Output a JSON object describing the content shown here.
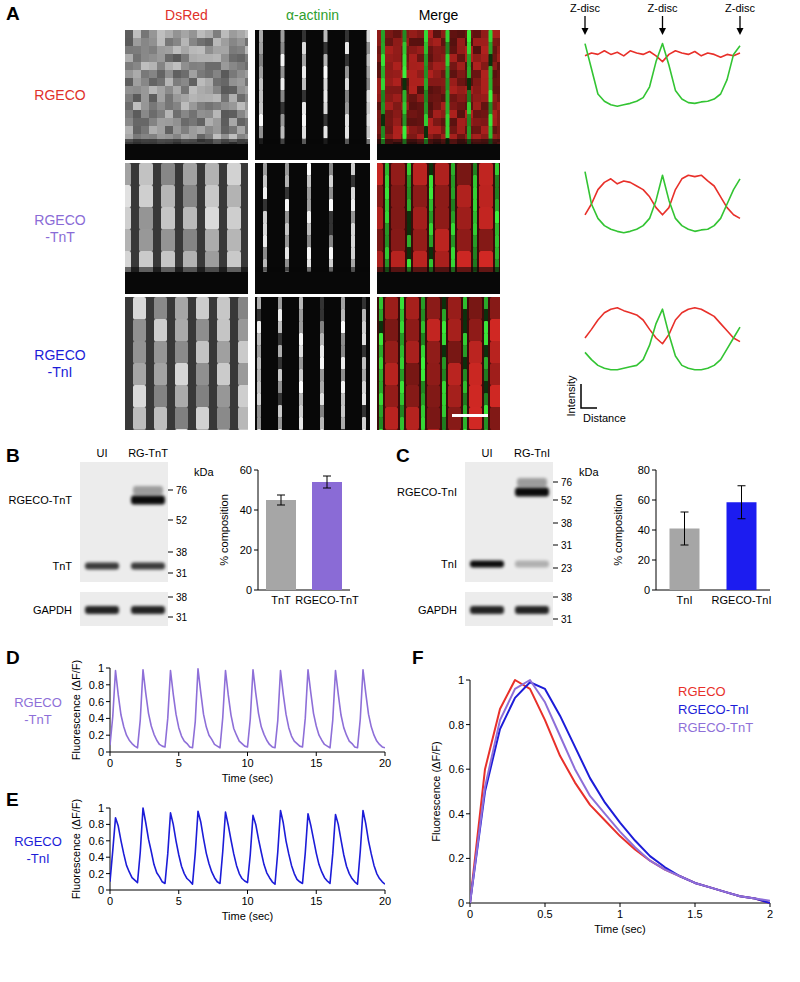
{
  "panel_labels": [
    "A",
    "B",
    "C",
    "D",
    "E",
    "F"
  ],
  "panel_a": {
    "columns": [
      {
        "text": "DsRed",
        "color": "#e0302a"
      },
      {
        "text": "α-actinin",
        "color": "#2ea02e"
      },
      {
        "text": "Merge",
        "color": "#000000"
      }
    ],
    "rows": [
      {
        "lines": [
          "RGECO"
        ],
        "color": "#e0302a"
      },
      {
        "lines": [
          "RGECO",
          "-TnT"
        ],
        "color": "#8a6bd6"
      },
      {
        "lines": [
          "RGECO",
          "-TnI"
        ],
        "color": "#1c1cd8"
      }
    ]
  },
  "blots": [
    {
      "lanes": [
        "UI",
        "RG-TnT"
      ],
      "unit": "kDa",
      "bands": [
        "RGECO-TnT",
        "TnT"
      ],
      "markers": [
        76,
        52,
        38,
        31
      ],
      "loading_label": "GAPDH",
      "loading_markers": [
        38,
        31
      ]
    },
    {
      "lanes": [
        "UI",
        "RG-TnI"
      ],
      "unit": "kDa",
      "bands": [
        "RGECO-TnI",
        "TnI"
      ],
      "markers": [
        76,
        52,
        38,
        31,
        23
      ],
      "loading_label": "GAPDH",
      "loading_markers": [
        38,
        31
      ]
    }
  ],
  "chart_data": [
    {
      "type": "line",
      "x": [
        0,
        1,
        2,
        3,
        4,
        5,
        6,
        7,
        8,
        9,
        10,
        11,
        12,
        13,
        14,
        15,
        16,
        17,
        18,
        19,
        20,
        21,
        22,
        23,
        24
      ],
      "xlim": [
        0,
        24
      ],
      "ylim": [
        0,
        1
      ],
      "tick_labels": false,
      "annotations": [
        "Z-disc",
        "Z-disc",
        "Z-disc"
      ],
      "series": [
        {
          "color": "#e8302a",
          "values": [
            0.78,
            0.82,
            0.8,
            0.85,
            0.8,
            0.83,
            0.78,
            0.85,
            0.82,
            0.8,
            0.84,
            0.78,
            0.7,
            0.8,
            0.85,
            0.82,
            0.8,
            0.84,
            0.78,
            0.82,
            0.8,
            0.76,
            0.8,
            0.78,
            0.82
          ]
        },
        {
          "color": "#33c433",
          "values": [
            0.95,
            0.6,
            0.25,
            0.15,
            0.1,
            0.08,
            0.1,
            0.12,
            0.15,
            0.2,
            0.35,
            0.7,
            0.95,
            0.65,
            0.3,
            0.18,
            0.13,
            0.12,
            0.14,
            0.15,
            0.18,
            0.25,
            0.45,
            0.8,
            0.92
          ]
        }
      ]
    },
    {
      "type": "line",
      "x": [
        0,
        1,
        2,
        3,
        4,
        5,
        6,
        7,
        8,
        9,
        10,
        11,
        12,
        13,
        14,
        15,
        16,
        17,
        18,
        19,
        20,
        21,
        22,
        23,
        24
      ],
      "xlim": [
        0,
        24
      ],
      "ylim": [
        0,
        1
      ],
      "tick_labels": false,
      "series": [
        {
          "color": "#e8302a",
          "values": [
            0.35,
            0.5,
            0.7,
            0.8,
            0.85,
            0.78,
            0.82,
            0.8,
            0.75,
            0.7,
            0.6,
            0.45,
            0.35,
            0.45,
            0.7,
            0.85,
            0.9,
            0.88,
            0.9,
            0.82,
            0.75,
            0.6,
            0.45,
            0.35,
            0.3
          ]
        },
        {
          "color": "#33c433",
          "values": [
            0.95,
            0.5,
            0.3,
            0.2,
            0.15,
            0.12,
            0.1,
            0.12,
            0.15,
            0.2,
            0.3,
            0.55,
            0.9,
            0.55,
            0.3,
            0.2,
            0.15,
            0.12,
            0.14,
            0.15,
            0.2,
            0.3,
            0.5,
            0.7,
            0.85
          ]
        }
      ]
    },
    {
      "type": "line",
      "x": [
        0,
        1,
        2,
        3,
        4,
        5,
        6,
        7,
        8,
        9,
        10,
        11,
        12,
        13,
        14,
        15,
        16,
        17,
        18,
        19,
        20,
        21,
        22,
        23,
        24
      ],
      "xlim": [
        0,
        24
      ],
      "ylim": [
        0,
        1
      ],
      "tick_labels": false,
      "x_label": "Distance",
      "y_label": "Intensity",
      "series": [
        {
          "color": "#e8302a",
          "values": [
            0.5,
            0.62,
            0.75,
            0.85,
            0.9,
            0.92,
            0.88,
            0.85,
            0.82,
            0.75,
            0.62,
            0.5,
            0.42,
            0.55,
            0.75,
            0.85,
            0.9,
            0.92,
            0.9,
            0.85,
            0.8,
            0.7,
            0.6,
            0.5,
            0.45
          ]
        },
        {
          "color": "#33c433",
          "values": [
            0.3,
            0.2,
            0.12,
            0.08,
            0.06,
            0.06,
            0.08,
            0.1,
            0.12,
            0.2,
            0.4,
            0.7,
            0.9,
            0.55,
            0.25,
            0.12,
            0.08,
            0.06,
            0.06,
            0.08,
            0.12,
            0.2,
            0.35,
            0.5,
            0.65
          ]
        }
      ]
    },
    {
      "type": "bar",
      "categories": [
        "TnT",
        "RGECO-TnT"
      ],
      "values": [
        45,
        54
      ],
      "errors": [
        2.5,
        3
      ],
      "colors": [
        "#a6a6a6",
        "#8a6bd6"
      ],
      "ylim": [
        0,
        60
      ],
      "yticks": [
        0,
        20,
        40,
        60
      ],
      "y_label": "% composition"
    },
    {
      "type": "bar",
      "categories": [
        "TnI",
        "RGECO-TnI"
      ],
      "values": [
        41,
        58.5
      ],
      "errors": [
        11,
        11
      ],
      "colors": [
        "#a6a6a6",
        "#1c1cf0"
      ],
      "ylim": [
        0,
        80
      ],
      "yticks": [
        0,
        20,
        40,
        60,
        80
      ],
      "y_label": "% composition"
    },
    {
      "type": "line",
      "x": [
        0,
        0.2,
        0.4,
        0.6,
        0.8,
        1,
        1.2,
        1.4,
        1.6,
        1.8,
        2,
        2.2,
        2.4,
        2.6,
        2.8,
        3,
        3.2,
        3.4,
        3.6,
        3.8,
        4,
        4.2,
        4.4,
        4.6,
        4.8,
        5,
        5.2,
        5.4,
        5.6,
        5.8,
        6,
        6.2,
        6.4,
        6.6,
        6.8,
        7,
        7.2,
        7.4,
        7.6,
        7.8,
        8,
        8.2,
        8.4,
        8.6,
        8.8,
        9,
        9.2,
        9.4,
        9.6,
        9.8,
        10,
        10.2,
        10.4,
        10.6,
        10.8,
        11,
        11.2,
        11.4,
        11.6,
        11.8,
        12,
        12.2,
        12.4,
        12.6,
        12.8,
        13,
        13.2,
        13.4,
        13.6,
        13.8,
        14,
        14.2,
        14.4,
        14.6,
        14.8,
        15,
        15.2,
        15.4,
        15.6,
        15.8,
        16,
        16.2,
        16.4,
        16.6,
        16.8,
        17,
        17.2,
        17.4,
        17.6,
        17.8,
        18,
        18.2,
        18.4,
        18.6,
        18.8,
        19,
        19.2,
        19.4,
        19.6,
        19.8,
        20
      ],
      "values": [
        0.08,
        0.42,
        0.97,
        0.68,
        0.44,
        0.3,
        0.2,
        0.14,
        0.1,
        0.07,
        0.05,
        0.38,
        0.98,
        0.7,
        0.46,
        0.31,
        0.21,
        0.14,
        0.09,
        0.07,
        0.06,
        0.4,
        0.97,
        0.69,
        0.45,
        0.29,
        0.19,
        0.13,
        0.1,
        0.06,
        0.05,
        0.36,
        0.99,
        0.71,
        0.45,
        0.3,
        0.2,
        0.15,
        0.09,
        0.07,
        0.05,
        0.41,
        0.97,
        0.68,
        0.44,
        0.28,
        0.2,
        0.13,
        0.1,
        0.07,
        0.06,
        0.39,
        0.98,
        0.7,
        0.46,
        0.3,
        0.21,
        0.14,
        0.09,
        0.06,
        0.05,
        0.37,
        0.97,
        0.69,
        0.45,
        0.29,
        0.19,
        0.13,
        0.1,
        0.07,
        0.06,
        0.4,
        0.98,
        0.71,
        0.46,
        0.31,
        0.2,
        0.14,
        0.09,
        0.07,
        0.05,
        0.38,
        0.97,
        0.69,
        0.44,
        0.29,
        0.2,
        0.13,
        0.1,
        0.06,
        0.05,
        0.39,
        0.98,
        0.7,
        0.45,
        0.3,
        0.2,
        0.13,
        0.09,
        0.06,
        0.05
      ],
      "color": "#8e6fd8",
      "xlim": [
        0,
        20
      ],
      "xticks": [
        0,
        5,
        10,
        15,
        20
      ],
      "ylim": [
        0,
        1
      ],
      "yticks": [
        0,
        0.2,
        0.4,
        0.6,
        0.8,
        1
      ],
      "x_label": "Time (sec)",
      "y_label": "Fluorescence (ΔF/F)",
      "annotations": [
        "RGECO",
        "-TnT"
      ]
    },
    {
      "type": "line",
      "x": [
        0,
        0.2,
        0.4,
        0.6,
        0.8,
        1,
        1.2,
        1.4,
        1.6,
        1.8,
        2,
        2.2,
        2.4,
        2.6,
        2.8,
        3,
        3.2,
        3.4,
        3.6,
        3.8,
        4,
        4.2,
        4.4,
        4.6,
        4.8,
        5,
        5.2,
        5.4,
        5.6,
        5.8,
        6,
        6.2,
        6.4,
        6.6,
        6.8,
        7,
        7.2,
        7.4,
        7.6,
        7.8,
        8,
        8.2,
        8.4,
        8.6,
        8.8,
        9,
        9.2,
        9.4,
        9.6,
        9.8,
        10,
        10.2,
        10.4,
        10.6,
        10.8,
        11,
        11.2,
        11.4,
        11.6,
        11.8,
        12,
        12.2,
        12.4,
        12.6,
        12.8,
        13,
        13.2,
        13.4,
        13.6,
        13.8,
        14,
        14.2,
        14.4,
        14.6,
        14.8,
        15,
        15.2,
        15.4,
        15.6,
        15.8,
        16,
        16.2,
        16.4,
        16.6,
        16.8,
        17,
        17.2,
        17.4,
        17.6,
        17.8,
        18,
        18.2,
        18.4,
        18.6,
        18.8,
        19,
        19.2,
        19.4,
        19.6,
        19.8,
        20
      ],
      "values": [
        0.1,
        0.48,
        0.88,
        0.78,
        0.6,
        0.44,
        0.3,
        0.22,
        0.15,
        0.12,
        0.09,
        0.46,
        1,
        0.82,
        0.62,
        0.47,
        0.31,
        0.21,
        0.16,
        0.1,
        0.08,
        0.44,
        0.94,
        0.8,
        0.6,
        0.43,
        0.29,
        0.2,
        0.14,
        0.11,
        0.07,
        0.45,
        0.96,
        0.83,
        0.63,
        0.45,
        0.32,
        0.22,
        0.15,
        0.1,
        0.08,
        0.47,
        0.95,
        0.79,
        0.61,
        0.44,
        0.3,
        0.2,
        0.14,
        0.11,
        0.09,
        0.43,
        0.91,
        0.8,
        0.62,
        0.46,
        0.31,
        0.21,
        0.15,
        0.1,
        0.07,
        0.46,
        0.97,
        0.82,
        0.6,
        0.44,
        0.3,
        0.2,
        0.13,
        0.1,
        0.08,
        0.45,
        0.93,
        0.79,
        0.62,
        0.45,
        0.31,
        0.22,
        0.15,
        0.11,
        0.08,
        0.44,
        0.92,
        0.8,
        0.61,
        0.43,
        0.29,
        0.2,
        0.14,
        0.1,
        0.07,
        0.47,
        0.97,
        0.81,
        0.6,
        0.44,
        0.3,
        0.2,
        0.14,
        0.1,
        0.07
      ],
      "color": "#1c1cd8",
      "xlim": [
        0,
        20
      ],
      "xticks": [
        0,
        5,
        10,
        15,
        20
      ],
      "ylim": [
        0,
        1
      ],
      "yticks": [
        0,
        0.2,
        0.4,
        0.6,
        0.8,
        1
      ],
      "x_label": "Time (sec)",
      "y_label": "Fluorescence (ΔF/F)",
      "annotations": [
        "RGECO",
        "-TnI"
      ]
    },
    {
      "type": "line",
      "x": [
        0,
        0.1,
        0.2,
        0.3,
        0.4,
        0.5,
        0.6,
        0.7,
        0.8,
        0.9,
        1,
        1.1,
        1.2,
        1.3,
        1.4,
        1.5,
        1.6,
        1.7,
        1.8,
        1.9,
        2
      ],
      "series": [
        {
          "name": "RGECO",
          "color": "#e8302a",
          "values": [
            0,
            0.6,
            0.87,
            1,
            0.96,
            0.82,
            0.66,
            0.54,
            0.44,
            0.37,
            0.3,
            0.24,
            0.19,
            0.15,
            0.12,
            0.09,
            0.07,
            0.05,
            0.03,
            0.02,
            0
          ]
        },
        {
          "name": "RGECO-TnI",
          "color": "#1c1cd8",
          "values": [
            0,
            0.5,
            0.78,
            0.92,
            0.99,
            0.96,
            0.84,
            0.7,
            0.56,
            0.45,
            0.36,
            0.28,
            0.21,
            0.16,
            0.12,
            0.09,
            0.07,
            0.05,
            0.03,
            0.02,
            0
          ]
        },
        {
          "name": "RGECO-TnT",
          "color": "#8e6fd8",
          "values": [
            0,
            0.52,
            0.82,
            0.96,
            1,
            0.9,
            0.75,
            0.6,
            0.48,
            0.4,
            0.32,
            0.25,
            0.19,
            0.15,
            0.12,
            0.09,
            0.07,
            0.05,
            0.03,
            0.02,
            0.01
          ]
        }
      ],
      "xlim": [
        0,
        2
      ],
      "xticks": [
        0,
        0.5,
        1,
        1.5,
        2
      ],
      "ylim": [
        0,
        1
      ],
      "yticks": [
        0,
        0.2,
        0.4,
        0.6,
        0.8,
        1
      ],
      "x_label": "Time (sec)",
      "y_label": "Fluorescence (ΔF/F)",
      "legend": "upper right"
    }
  ]
}
